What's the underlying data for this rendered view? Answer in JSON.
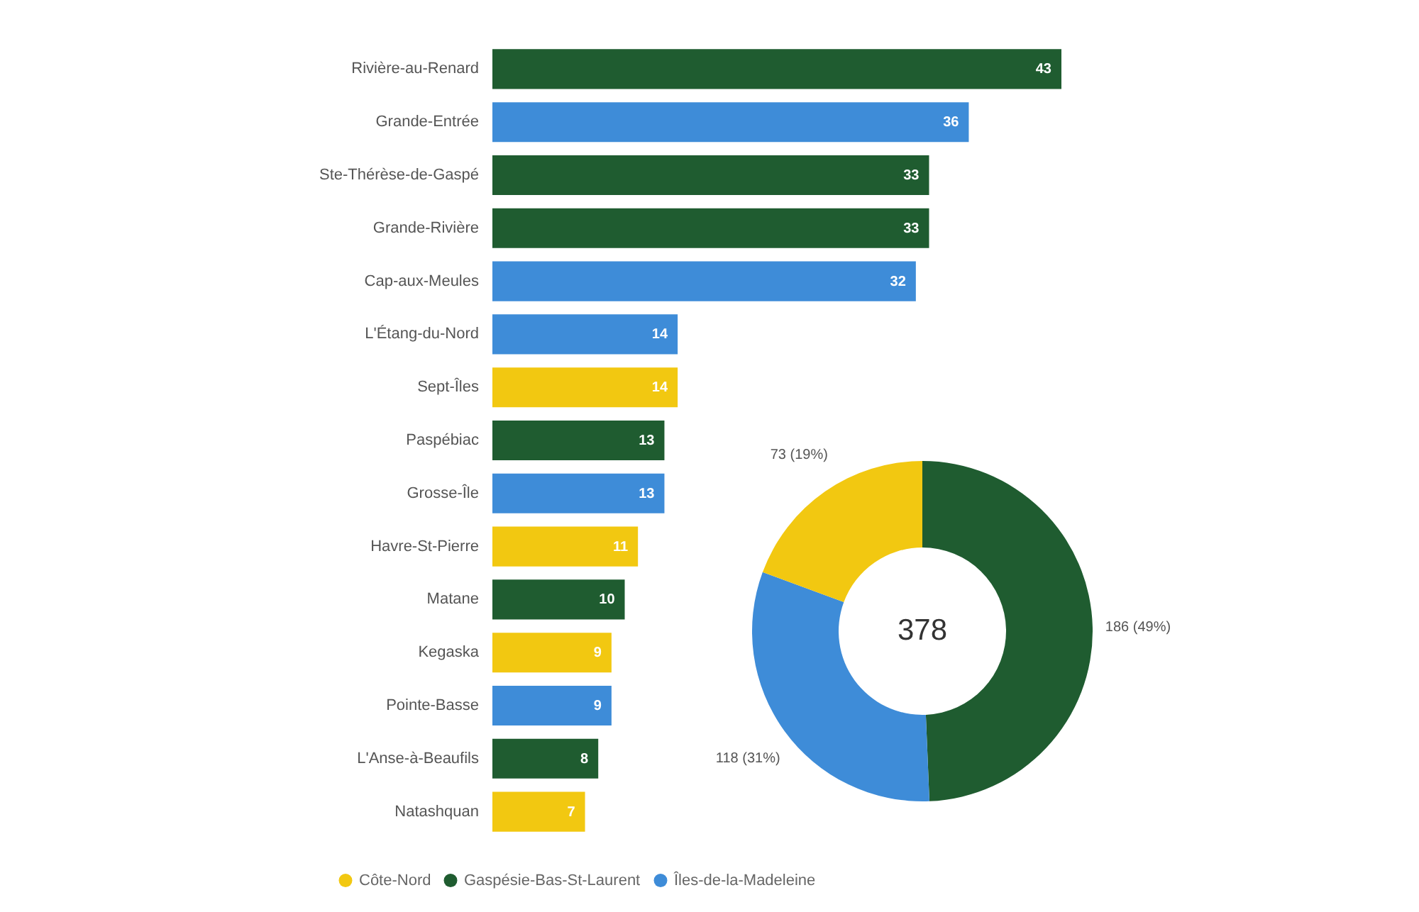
{
  "chart_data": [
    {
      "type": "bar",
      "orientation": "horizontal",
      "data_labels": true,
      "categories": [
        "Rivière-au-Renard",
        "Grande-Entrée",
        "Ste-Thérèse-de-Gaspé",
        "Grande-Rivière",
        "Cap-aux-Meules",
        "L'Étang-du-Nord",
        "Sept-Îles",
        "Paspébiac",
        "Grosse-Île",
        "Havre-St-Pierre",
        "Matane",
        "Kegaska",
        "Pointe-Basse",
        "L'Anse-à-Beaufils",
        "Natashquan"
      ],
      "values": [
        43,
        36,
        33,
        33,
        32,
        14,
        14,
        13,
        13,
        11,
        10,
        9,
        9,
        8,
        7
      ],
      "colors": [
        "#1f5c30",
        "#3e8cd8",
        "#1f5c30",
        "#1f5c30",
        "#3e8cd8",
        "#3e8cd8",
        "#f2c811",
        "#1f5c30",
        "#3e8cd8",
        "#f2c811",
        "#1f5c30",
        "#f2c811",
        "#3e8cd8",
        "#1f5c30",
        "#f2c811"
      ]
    },
    {
      "type": "donut",
      "categories": [
        "Gaspésie-Bas-St-Laurent",
        "Îles-de-la-Madeleine",
        "Côte-Nord"
      ],
      "values": [
        186,
        118,
        73
      ],
      "colors": [
        "#1f5c30",
        "#3e8cd8",
        "#f2c811"
      ],
      "value_labels": [
        "186 (49%)",
        "118 (31%)",
        "73 (19%)"
      ],
      "annotations": [
        "378"
      ],
      "legend": "bottom"
    }
  ]
}
